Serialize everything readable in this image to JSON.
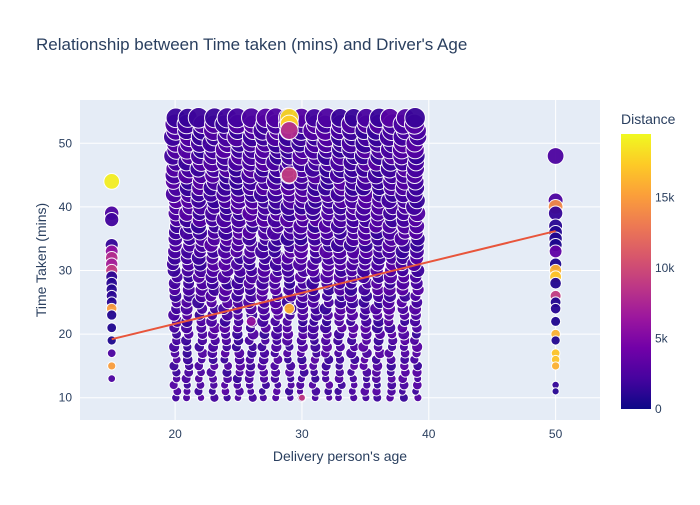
{
  "chart_data": {
    "type": "scatter",
    "title": "Relationship between Time taken (mins) and Driver's Age",
    "xlabel": "Delivery person's age",
    "ylabel": "Time Taken (mins)",
    "xlim": [
      12.5,
      53.5
    ],
    "ylim": [
      6.5,
      56.8
    ],
    "x_ticks": [
      20,
      30,
      40,
      50
    ],
    "y_ticks": [
      10,
      20,
      30,
      40,
      50
    ],
    "grid": true,
    "marker_size_encodes": "Distance",
    "colorbar": {
      "title": "Distance",
      "range": [
        0,
        19500
      ],
      "ticks": [
        {
          "value": 0,
          "label": "0"
        },
        {
          "value": 5000,
          "label": "5k"
        },
        {
          "value": 10000,
          "label": "10k"
        },
        {
          "value": 15000,
          "label": "15k"
        }
      ],
      "colors": [
        "#0d0887",
        "#46039f",
        "#7201a8",
        "#9c179e",
        "#bd3786",
        "#d8576b",
        "#ed7953",
        "#fb9f3a",
        "#fdca26",
        "#f0f921"
      ]
    },
    "trendline": {
      "type": "line",
      "color": "#e8553b",
      "points": [
        [
          15,
          19.2
        ],
        [
          50,
          36.2
        ]
      ]
    },
    "dense_block": {
      "ages": [
        20,
        21,
        22,
        23,
        24,
        25,
        26,
        27,
        28,
        29,
        30,
        31,
        32,
        33,
        34,
        35,
        36,
        37,
        38,
        39
      ],
      "time_min": 10,
      "time_max": 54,
      "base_distance": 1500
    },
    "series": [
      {
        "name": "age 15",
        "points": [
          {
            "x": 15,
            "y": 44,
            "distance": 19000
          },
          {
            "x": 15,
            "y": 39,
            "distance": 2500
          },
          {
            "x": 15,
            "y": 38,
            "distance": 2000
          },
          {
            "x": 15,
            "y": 34,
            "distance": 1500
          },
          {
            "x": 15,
            "y": 33,
            "distance": 6000
          },
          {
            "x": 15,
            "y": 32,
            "distance": 8000
          },
          {
            "x": 15,
            "y": 31,
            "distance": 7000
          },
          {
            "x": 15,
            "y": 30,
            "distance": 9000
          },
          {
            "x": 15,
            "y": 29,
            "distance": 1200
          },
          {
            "x": 15,
            "y": 28,
            "distance": 1000
          },
          {
            "x": 15,
            "y": 27,
            "distance": 900
          },
          {
            "x": 15,
            "y": 26,
            "distance": 1100
          },
          {
            "x": 15,
            "y": 25,
            "distance": 1000
          },
          {
            "x": 15,
            "y": 24,
            "distance": 15000
          },
          {
            "x": 15,
            "y": 23,
            "distance": 800
          },
          {
            "x": 15,
            "y": 21,
            "distance": 700
          },
          {
            "x": 15,
            "y": 19,
            "distance": 600
          },
          {
            "x": 15,
            "y": 17,
            "distance": 2500
          },
          {
            "x": 15,
            "y": 15,
            "distance": 15000
          },
          {
            "x": 15,
            "y": 13,
            "distance": 2500
          }
        ]
      },
      {
        "name": "age 50",
        "points": [
          {
            "x": 50,
            "y": 48,
            "distance": 2500
          },
          {
            "x": 50,
            "y": 41,
            "distance": 2500
          },
          {
            "x": 50,
            "y": 40,
            "distance": 14000
          },
          {
            "x": 50,
            "y": 39,
            "distance": 1500
          },
          {
            "x": 50,
            "y": 37,
            "distance": 1000
          },
          {
            "x": 50,
            "y": 36,
            "distance": 800
          },
          {
            "x": 50,
            "y": 35,
            "distance": 700
          },
          {
            "x": 50,
            "y": 34,
            "distance": 600
          },
          {
            "x": 50,
            "y": 33,
            "distance": 3500
          },
          {
            "x": 50,
            "y": 31,
            "distance": 600
          },
          {
            "x": 50,
            "y": 30,
            "distance": 16000
          },
          {
            "x": 50,
            "y": 29,
            "distance": 17000
          },
          {
            "x": 50,
            "y": 28,
            "distance": 800
          },
          {
            "x": 50,
            "y": 26,
            "distance": 9000
          },
          {
            "x": 50,
            "y": 25,
            "distance": 800
          },
          {
            "x": 50,
            "y": 24,
            "distance": 1000
          },
          {
            "x": 50,
            "y": 22,
            "distance": 700
          },
          {
            "x": 50,
            "y": 20,
            "distance": 16000
          },
          {
            "x": 50,
            "y": 19,
            "distance": 800
          },
          {
            "x": 50,
            "y": 17,
            "distance": 17000
          },
          {
            "x": 50,
            "y": 16,
            "distance": 17000
          },
          {
            "x": 50,
            "y": 15,
            "distance": 16000
          },
          {
            "x": 50,
            "y": 12,
            "distance": 1500
          },
          {
            "x": 50,
            "y": 11,
            "distance": 1000
          }
        ]
      },
      {
        "name": "outliers",
        "points": [
          {
            "x": 29,
            "y": 54,
            "distance": 18000
          },
          {
            "x": 29,
            "y": 53,
            "distance": 17500
          },
          {
            "x": 29,
            "y": 52,
            "distance": 8000
          },
          {
            "x": 29,
            "y": 45,
            "distance": 9000
          },
          {
            "x": 29,
            "y": 24,
            "distance": 16000
          },
          {
            "x": 30,
            "y": 10,
            "distance": 9000
          },
          {
            "x": 26,
            "y": 22,
            "distance": 6000
          }
        ]
      }
    ]
  }
}
